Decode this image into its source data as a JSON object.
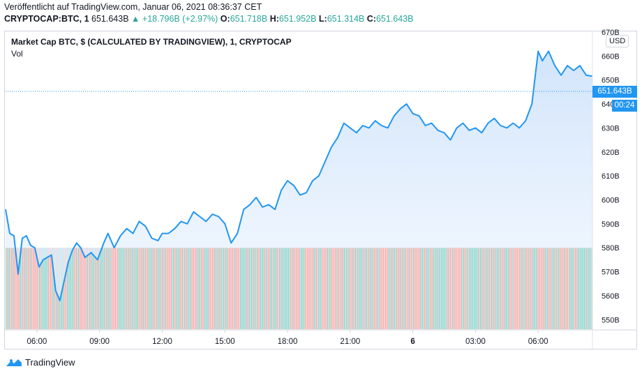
{
  "header": {
    "published": "Veröffentlicht auf TradingView.com, Januar 06, 2021 08:36:37 CET",
    "symbol": "CRYPTOCAP:BTC, 1",
    "last": "651.643B",
    "change": "▲ +18.796B (+2.97%)",
    "o_label": "O:",
    "o_value": "651.718B",
    "h_label": "H:",
    "h_value": "651.952B",
    "l_label": "L:",
    "l_value": "651.314B",
    "c_label": "C:",
    "c_value": "651.643B"
  },
  "pane": {
    "title": "Market Cap BTC, $ (CALCULATED BY TRADINGVIEW), 1, CRYPTOCAP",
    "volume_label": "Vol",
    "currency": "USD",
    "price_tag": "651.643B",
    "countdown": "00:24"
  },
  "footer": {
    "brand": "TradingView"
  },
  "colors": {
    "line": "#2196f3",
    "fill_top": "#cfe3fb",
    "vol_up": "#7fcfc7",
    "vol_down": "#f2a3a3"
  },
  "chart_data": {
    "type": "area",
    "y_unit": "B USD",
    "ylim": [
      546,
      670
    ],
    "y_ticks": [
      "670B",
      "660B",
      "650B",
      "640B",
      "630B",
      "620B",
      "610B",
      "600B",
      "590B",
      "580B",
      "570B",
      "560B",
      "550B"
    ],
    "x_ticks": [
      "06:00",
      "09:00",
      "12:00",
      "15:00",
      "18:00",
      "21:00",
      "6",
      "03:00",
      "06:00"
    ],
    "x_hours": [
      0,
      3,
      6,
      9,
      12,
      15,
      18,
      21,
      24
    ],
    "x_range_hours": [
      -1.5,
      26.6
    ],
    "price": [
      [
        -1.5,
        596
      ],
      [
        -1.3,
        586
      ],
      [
        -1.1,
        585
      ],
      [
        -0.9,
        569
      ],
      [
        -0.7,
        584
      ],
      [
        -0.5,
        585
      ],
      [
        -0.3,
        581
      ],
      [
        -0.1,
        580
      ],
      [
        0.1,
        572
      ],
      [
        0.3,
        575
      ],
      [
        0.5,
        576
      ],
      [
        0.7,
        577
      ],
      [
        0.9,
        562
      ],
      [
        1.1,
        558
      ],
      [
        1.3,
        566
      ],
      [
        1.5,
        574
      ],
      [
        1.7,
        579
      ],
      [
        1.9,
        582
      ],
      [
        2.1,
        580
      ],
      [
        2.3,
        576
      ],
      [
        2.6,
        578
      ],
      [
        2.9,
        575
      ],
      [
        3.2,
        582
      ],
      [
        3.4,
        586
      ],
      [
        3.7,
        580
      ],
      [
        4.0,
        585
      ],
      [
        4.3,
        588
      ],
      [
        4.6,
        586
      ],
      [
        4.9,
        591
      ],
      [
        5.2,
        589
      ],
      [
        5.5,
        584
      ],
      [
        5.8,
        583
      ],
      [
        6.0,
        586
      ],
      [
        6.3,
        586
      ],
      [
        6.6,
        588
      ],
      [
        6.9,
        591
      ],
      [
        7.2,
        590
      ],
      [
        7.5,
        595
      ],
      [
        7.8,
        593
      ],
      [
        8.1,
        591
      ],
      [
        8.4,
        594
      ],
      [
        8.7,
        593
      ],
      [
        9.0,
        590
      ],
      [
        9.3,
        582
      ],
      [
        9.6,
        586
      ],
      [
        9.9,
        596
      ],
      [
        10.2,
        598
      ],
      [
        10.5,
        601
      ],
      [
        10.8,
        597
      ],
      [
        11.1,
        598
      ],
      [
        11.4,
        596
      ],
      [
        11.7,
        604
      ],
      [
        12.0,
        608
      ],
      [
        12.3,
        606
      ],
      [
        12.6,
        602
      ],
      [
        12.9,
        603
      ],
      [
        13.2,
        608
      ],
      [
        13.5,
        610
      ],
      [
        13.8,
        616
      ],
      [
        14.1,
        622
      ],
      [
        14.4,
        626
      ],
      [
        14.7,
        632
      ],
      [
        15.0,
        630
      ],
      [
        15.3,
        628
      ],
      [
        15.6,
        631
      ],
      [
        15.9,
        630
      ],
      [
        16.2,
        633
      ],
      [
        16.5,
        631
      ],
      [
        16.8,
        630
      ],
      [
        17.1,
        635
      ],
      [
        17.4,
        638
      ],
      [
        17.7,
        640
      ],
      [
        18.0,
        636
      ],
      [
        18.3,
        635
      ],
      [
        18.6,
        631
      ],
      [
        18.9,
        632
      ],
      [
        19.2,
        629
      ],
      [
        19.5,
        628
      ],
      [
        19.8,
        625
      ],
      [
        20.1,
        630
      ],
      [
        20.4,
        632
      ],
      [
        20.7,
        629
      ],
      [
        21.0,
        630
      ],
      [
        21.3,
        628
      ],
      [
        21.6,
        632
      ],
      [
        21.9,
        634
      ],
      [
        22.2,
        631
      ],
      [
        22.5,
        630
      ],
      [
        22.8,
        632
      ],
      [
        23.1,
        630
      ],
      [
        23.4,
        633
      ],
      [
        23.7,
        640
      ],
      [
        24.0,
        662
      ],
      [
        24.2,
        658
      ],
      [
        24.5,
        662
      ],
      [
        24.8,
        656
      ],
      [
        25.1,
        652
      ],
      [
        25.4,
        656
      ],
      [
        25.7,
        654
      ],
      [
        26.0,
        656
      ],
      [
        26.3,
        652
      ],
      [
        26.6,
        651.6
      ]
    ]
  }
}
